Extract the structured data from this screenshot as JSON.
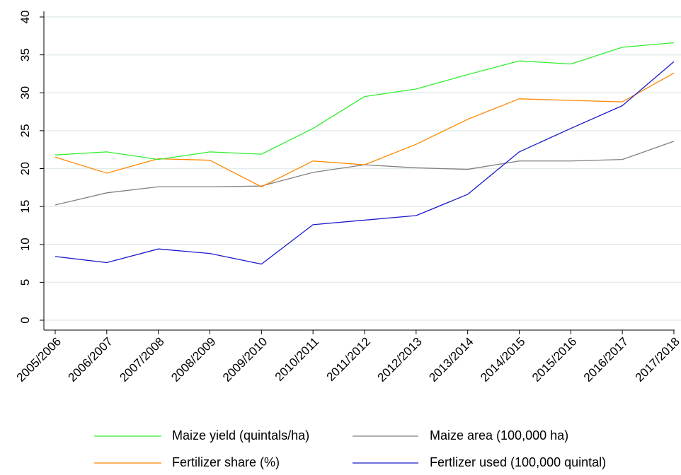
{
  "chart_data": {
    "type": "line",
    "title": "",
    "xlabel": "",
    "ylabel": "",
    "categories": [
      "2005/2006",
      "2006/2007",
      "2007/2008",
      "2008/2009",
      "2009/2010",
      "2010/2011",
      "2011/2012",
      "2012/2013",
      "2013/2014",
      "2014/2015",
      "2015/2016",
      "2016/2017",
      "2017/2018"
    ],
    "ylim": [
      0,
      40
    ],
    "yticks": [
      "0",
      "5",
      "10",
      "15",
      "20",
      "25",
      "30",
      "35",
      "40"
    ],
    "grid": true,
    "legend_position": "bottom",
    "series": [
      {
        "name": "Maize yield (quintals/ha)",
        "color": "#33ee33",
        "values": [
          21.8,
          22.2,
          21.2,
          22.2,
          21.9,
          25.3,
          29.5,
          30.5,
          32.4,
          34.2,
          33.8,
          36.0,
          36.6
        ]
      },
      {
        "name": "Maize area (100,000 ha)",
        "color": "#808080",
        "values": [
          15.2,
          16.8,
          17.6,
          17.6,
          17.7,
          19.5,
          20.5,
          20.1,
          19.9,
          21.0,
          21.0,
          21.2,
          23.6
        ]
      },
      {
        "name": "Fertilizer share (%)",
        "color": "#ff8800",
        "values": [
          21.5,
          19.4,
          21.3,
          21.1,
          17.6,
          21.0,
          20.5,
          23.2,
          26.5,
          29.2,
          29.0,
          28.8,
          32.6
        ]
      },
      {
        "name": "Fertlizer used (100,000 quintal)",
        "color": "#1a1acc",
        "values": [
          8.4,
          7.6,
          9.4,
          8.8,
          7.4,
          12.6,
          13.2,
          13.8,
          16.6,
          22.2,
          25.3,
          28.3,
          34.1
        ]
      }
    ]
  }
}
